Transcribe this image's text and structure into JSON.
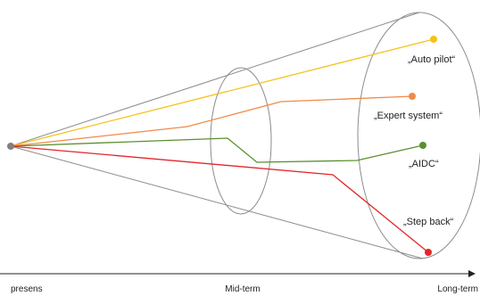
{
  "diagram": {
    "scenarios": [
      {
        "id": "auto-pilot",
        "label": "„Auto pilot“",
        "color": "#f5c21b"
      },
      {
        "id": "expert-system",
        "label": "„Expert system“",
        "color": "#f08a48"
      },
      {
        "id": "aidc",
        "label": "„AIDC“",
        "color": "#5c8f2f"
      },
      {
        "id": "step-back",
        "label": "„Step back“",
        "color": "#e32629"
      }
    ],
    "origin_color": "#808080",
    "outline_color": "#8c8c8c",
    "axis": {
      "start_label": "presens",
      "mid_label": "Mid-term",
      "end_label": "Long-term",
      "color": "#222222"
    }
  }
}
